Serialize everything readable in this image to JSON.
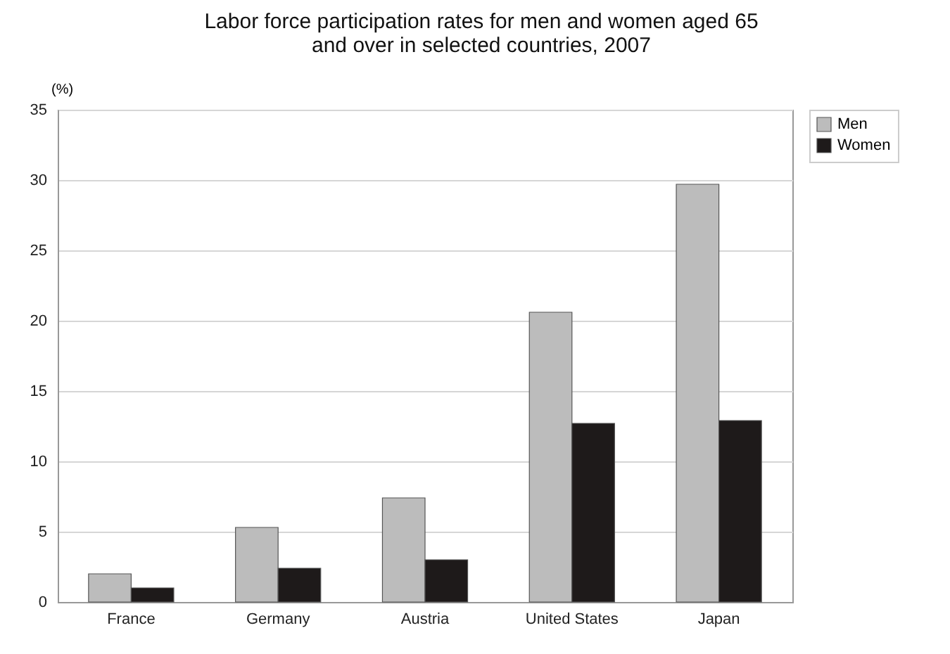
{
  "chart_data": {
    "type": "bar",
    "title": "Labor force participation rates for men and women aged 65 and over in selected countries, 2007",
    "ylabel": "(%)",
    "categories": [
      "France",
      "Germany",
      "Austria",
      "United States",
      "Japan"
    ],
    "series": [
      {
        "name": "Men",
        "color": "#bcbcbc",
        "values": [
          2.0,
          5.3,
          7.4,
          20.6,
          29.7
        ]
      },
      {
        "name": "Women",
        "color": "#1e1a1a",
        "values": [
          1.0,
          2.4,
          3.0,
          12.7,
          12.9
        ]
      }
    ],
    "ylim": [
      0,
      35
    ],
    "yticks": [
      0,
      5,
      10,
      15,
      20,
      25,
      30,
      35
    ],
    "grid": "y",
    "legend": "right"
  }
}
